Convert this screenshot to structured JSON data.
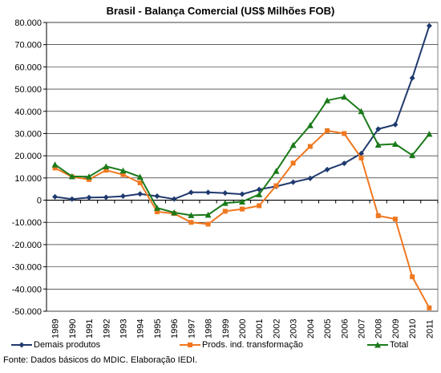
{
  "chart_data": {
    "type": "line",
    "title": "Brasil - Balança Comercial (US$ Milhões FOB)",
    "xlabel": "",
    "ylabel": "",
    "ylim": [
      -50000,
      80000
    ],
    "y_ticks": [
      "80.000",
      "70.000",
      "60.000",
      "50.000",
      "40.000",
      "30.000",
      "20.000",
      "10.000",
      "0",
      "-10.000",
      "-20.000",
      "-30.000",
      "-40.000",
      "-50.000"
    ],
    "y_tick_values": [
      80000,
      70000,
      60000,
      50000,
      40000,
      30000,
      20000,
      10000,
      0,
      -10000,
      -20000,
      -30000,
      -40000,
      -50000
    ],
    "categories": [
      "1989",
      "1990",
      "1991",
      "1992",
      "1993",
      "1994",
      "1995",
      "1996",
      "1997",
      "1998",
      "1999",
      "2000",
      "2001",
      "2002",
      "2003",
      "2004",
      "2005",
      "2006",
      "2007",
      "2008",
      "2009",
      "2010",
      "2011"
    ],
    "grid": true,
    "legend_position": "bottom",
    "series": [
      {
        "name": "Demais produtos",
        "color": "#1f3a6e",
        "marker": "diamond",
        "values": [
          1500,
          500,
          1200,
          1300,
          1800,
          2800,
          1800,
          500,
          3500,
          3500,
          3200,
          2700,
          4800,
          6200,
          8100,
          9800,
          13800,
          16600,
          21000,
          32000,
          34000,
          55000,
          78500
        ]
      },
      {
        "name": "Prods. ind. transformação",
        "color": "#f07820",
        "marker": "square",
        "values": [
          14500,
          10500,
          9300,
          13500,
          11500,
          7800,
          -5200,
          -6000,
          -10000,
          -10800,
          -5000,
          -4000,
          -2500,
          6500,
          16700,
          24200,
          31300,
          30000,
          19000,
          -7000,
          -8500,
          -34500,
          -48500
        ]
      },
      {
        "name": "Total",
        "color": "#1a7a1a",
        "marker": "triangle",
        "values": [
          16000,
          10700,
          10600,
          15200,
          13300,
          10500,
          -3500,
          -5600,
          -6800,
          -6600,
          -1300,
          -700,
          2600,
          13100,
          24800,
          33700,
          44900,
          46500,
          40000,
          24900,
          25300,
          20200,
          29800
        ]
      }
    ]
  },
  "source_note": "Fonte: Dados básicos do MDIC. Elaboração IEDI."
}
